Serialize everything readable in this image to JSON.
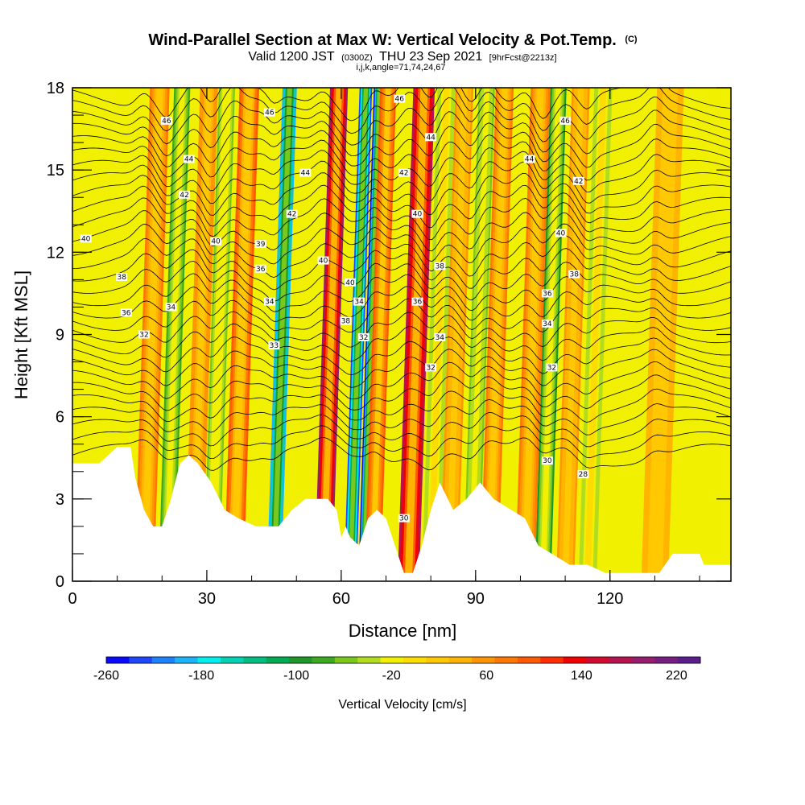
{
  "chart_data": {
    "type": "heatmap",
    "title": "Wind-Parallel Section at Max W: Vertical Velocity & Pot.Temp.",
    "title_mark": "(C)",
    "subtitle": {
      "valid_prefix": "Valid 1200 JST",
      "utc": "(0300Z)",
      "date": "THU 23 Sep 2021",
      "forecast": "[9hrFcst@2213z]"
    },
    "indices": "i,j,k,angle=71,74,24,67",
    "xlabel": "Distance [nm]",
    "ylabel": "Height [Kft MSL]",
    "xlim": [
      0,
      147
    ],
    "ylim": [
      0,
      18
    ],
    "x_ticks": [
      {
        "value": 0,
        "label": "0"
      },
      {
        "value": 30,
        "label": "30"
      },
      {
        "value": 60,
        "label": "60"
      },
      {
        "value": 90,
        "label": "90"
      },
      {
        "value": 120,
        "label": "120"
      }
    ],
    "y_ticks": [
      {
        "value": 0,
        "label": "0"
      },
      {
        "value": 3,
        "label": "3"
      },
      {
        "value": 6,
        "label": "6"
      },
      {
        "value": 9,
        "label": "9"
      },
      {
        "value": 12,
        "label": "12"
      },
      {
        "value": 15,
        "label": "15"
      },
      {
        "value": 18,
        "label": "18"
      }
    ],
    "colorbar": {
      "title": "Vertical Velocity [cm/s]",
      "range": [
        -260,
        240
      ],
      "ticks": [
        {
          "value": -260,
          "label": "-260"
        },
        {
          "value": -180,
          "label": "-180"
        },
        {
          "value": -100,
          "label": "-100"
        },
        {
          "value": -20,
          "label": "-20"
        },
        {
          "value": 60,
          "label": "60"
        },
        {
          "value": 140,
          "label": "140"
        },
        {
          "value": 220,
          "label": "220"
        }
      ],
      "colors": [
        "#0a0afa",
        "#1e46fa",
        "#1e82fa",
        "#1eb4fa",
        "#00f0f0",
        "#00d2b4",
        "#00be82",
        "#00aa50",
        "#1e9628",
        "#3caa1e",
        "#78c81e",
        "#b4dc1e",
        "#f0f000",
        "#ffdc00",
        "#ffc800",
        "#ffb400",
        "#ff9600",
        "#ff7800",
        "#ff5a00",
        "#ff2d00",
        "#f00000",
        "#d20a2d",
        "#b41450",
        "#961e6e",
        "#781e82",
        "#5a1e8c"
      ]
    },
    "updraft_bands": [
      {
        "x": 16,
        "w": 85,
        "width": 2.2
      },
      {
        "x": 27,
        "w": 65,
        "width": 2.0
      },
      {
        "x": 36,
        "w": 90,
        "width": 2.2
      },
      {
        "x": 56,
        "w": 185,
        "width": 2.0
      },
      {
        "x": 67,
        "w": 100,
        "width": 1.8
      },
      {
        "x": 75,
        "w": 175,
        "width": 2.4
      },
      {
        "x": 84,
        "w": 60,
        "width": 2.0
      },
      {
        "x": 93,
        "w": 70,
        "width": 2.0
      },
      {
        "x": 101,
        "w": 85,
        "width": 2.2
      },
      {
        "x": 110,
        "w": 60,
        "width": 2.0
      },
      {
        "x": 130,
        "w": 40,
        "width": 3.0
      }
    ],
    "downdraft_bands": [
      {
        "x": 21,
        "w": -70,
        "width": 1.8
      },
      {
        "x": 31,
        "w": -50,
        "width": 1.8
      },
      {
        "x": 45,
        "w": -200,
        "width": 1.6
      },
      {
        "x": 62,
        "w": -230,
        "width": 1.4
      },
      {
        "x": 65,
        "w": -250,
        "width": 1.2
      },
      {
        "x": 80,
        "w": -40,
        "width": 2.0
      },
      {
        "x": 89,
        "w": -60,
        "width": 1.8
      },
      {
        "x": 105,
        "w": -90,
        "width": 1.8
      },
      {
        "x": 115,
        "w": -40,
        "width": 2.0
      }
    ],
    "potential_temperature_levels": [
      {
        "label": "28",
        "x": 114,
        "y": 3.9
      },
      {
        "label": "30",
        "x": 106,
        "y": 4.4
      },
      {
        "label": "30",
        "x": 74,
        "y": 2.3
      },
      {
        "label": "32",
        "x": 16,
        "y": 9.0
      },
      {
        "label": "32",
        "x": 80,
        "y": 7.8
      },
      {
        "label": "32",
        "x": 107,
        "y": 7.8
      },
      {
        "label": "33",
        "x": 45,
        "y": 8.6
      },
      {
        "label": "32",
        "x": 65,
        "y": 8.9
      },
      {
        "label": "34",
        "x": 22,
        "y": 10.0
      },
      {
        "label": "34",
        "x": 82,
        "y": 8.9
      },
      {
        "label": "34",
        "x": 106,
        "y": 9.4
      },
      {
        "label": "34",
        "x": 44,
        "y": 10.2
      },
      {
        "label": "34",
        "x": 64,
        "y": 10.2
      },
      {
        "label": "36",
        "x": 12,
        "y": 9.8
      },
      {
        "label": "36",
        "x": 77,
        "y": 10.2
      },
      {
        "label": "36",
        "x": 106,
        "y": 10.5
      },
      {
        "label": "36",
        "x": 42,
        "y": 11.4
      },
      {
        "label": "38",
        "x": 61,
        "y": 9.5
      },
      {
        "label": "38",
        "x": 11,
        "y": 11.1
      },
      {
        "label": "38",
        "x": 82,
        "y": 11.5
      },
      {
        "label": "38",
        "x": 112,
        "y": 11.2
      },
      {
        "label": "39",
        "x": 42,
        "y": 12.3
      },
      {
        "label": "40",
        "x": 62,
        "y": 10.9
      },
      {
        "label": "40",
        "x": 56,
        "y": 11.7
      },
      {
        "label": "40",
        "x": 3,
        "y": 12.5
      },
      {
        "label": "40",
        "x": 32,
        "y": 12.4
      },
      {
        "label": "40",
        "x": 77,
        "y": 13.4
      },
      {
        "label": "40",
        "x": 109,
        "y": 12.7
      },
      {
        "label": "42",
        "x": 25,
        "y": 14.1
      },
      {
        "label": "42",
        "x": 49,
        "y": 13.4
      },
      {
        "label": "42",
        "x": 74,
        "y": 14.9
      },
      {
        "label": "42",
        "x": 113,
        "y": 14.6
      },
      {
        "label": "44",
        "x": 26,
        "y": 15.4
      },
      {
        "label": "44",
        "x": 52,
        "y": 14.9
      },
      {
        "label": "44",
        "x": 80,
        "y": 16.2
      },
      {
        "label": "44",
        "x": 102,
        "y": 15.4
      },
      {
        "label": "46",
        "x": 21,
        "y": 16.8
      },
      {
        "label": "46",
        "x": 44,
        "y": 17.1
      },
      {
        "label": "46",
        "x": 73,
        "y": 17.6
      },
      {
        "label": "46",
        "x": 110,
        "y": 16.8
      }
    ],
    "terrain": [
      {
        "x": 0,
        "h": 4.3
      },
      {
        "x": 6,
        "h": 4.3
      },
      {
        "x": 8,
        "h": 4.6
      },
      {
        "x": 10,
        "h": 4.9
      },
      {
        "x": 13,
        "h": 4.9
      },
      {
        "x": 14,
        "h": 3.8
      },
      {
        "x": 16,
        "h": 2.6
      },
      {
        "x": 18,
        "h": 2.0
      },
      {
        "x": 20,
        "h": 2.0
      },
      {
        "x": 22,
        "h": 3.0
      },
      {
        "x": 24,
        "h": 4.3
      },
      {
        "x": 26,
        "h": 4.6
      },
      {
        "x": 28,
        "h": 4.3
      },
      {
        "x": 31,
        "h": 3.6
      },
      {
        "x": 34,
        "h": 2.6
      },
      {
        "x": 37,
        "h": 2.3
      },
      {
        "x": 41,
        "h": 2.0
      },
      {
        "x": 46,
        "h": 2.0
      },
      {
        "x": 49,
        "h": 2.6
      },
      {
        "x": 52,
        "h": 3.0
      },
      {
        "x": 57,
        "h": 3.0
      },
      {
        "x": 59,
        "h": 2.6
      },
      {
        "x": 60,
        "h": 1.6
      },
      {
        "x": 61,
        "h": 2.0
      },
      {
        "x": 62,
        "h": 1.6
      },
      {
        "x": 64,
        "h": 1.3
      },
      {
        "x": 66,
        "h": 2.3
      },
      {
        "x": 68,
        "h": 2.6
      },
      {
        "x": 70,
        "h": 2.3
      },
      {
        "x": 72,
        "h": 1.3
      },
      {
        "x": 74,
        "h": 0.3
      },
      {
        "x": 76,
        "h": 0.3
      },
      {
        "x": 78,
        "h": 1.3
      },
      {
        "x": 80,
        "h": 2.6
      },
      {
        "x": 82,
        "h": 3.6
      },
      {
        "x": 85,
        "h": 2.6
      },
      {
        "x": 88,
        "h": 3.0
      },
      {
        "x": 91,
        "h": 3.6
      },
      {
        "x": 94,
        "h": 3.0
      },
      {
        "x": 98,
        "h": 2.6
      },
      {
        "x": 101,
        "h": 2.3
      },
      {
        "x": 104,
        "h": 1.3
      },
      {
        "x": 107,
        "h": 1.0
      },
      {
        "x": 111,
        "h": 0.6
      },
      {
        "x": 115,
        "h": 0.6
      },
      {
        "x": 119,
        "h": 0.3
      },
      {
        "x": 131,
        "h": 0.3
      },
      {
        "x": 134,
        "h": 1.0
      },
      {
        "x": 140,
        "h": 1.0
      },
      {
        "x": 141,
        "h": 0.6
      },
      {
        "x": 147,
        "h": 0.6
      }
    ]
  }
}
